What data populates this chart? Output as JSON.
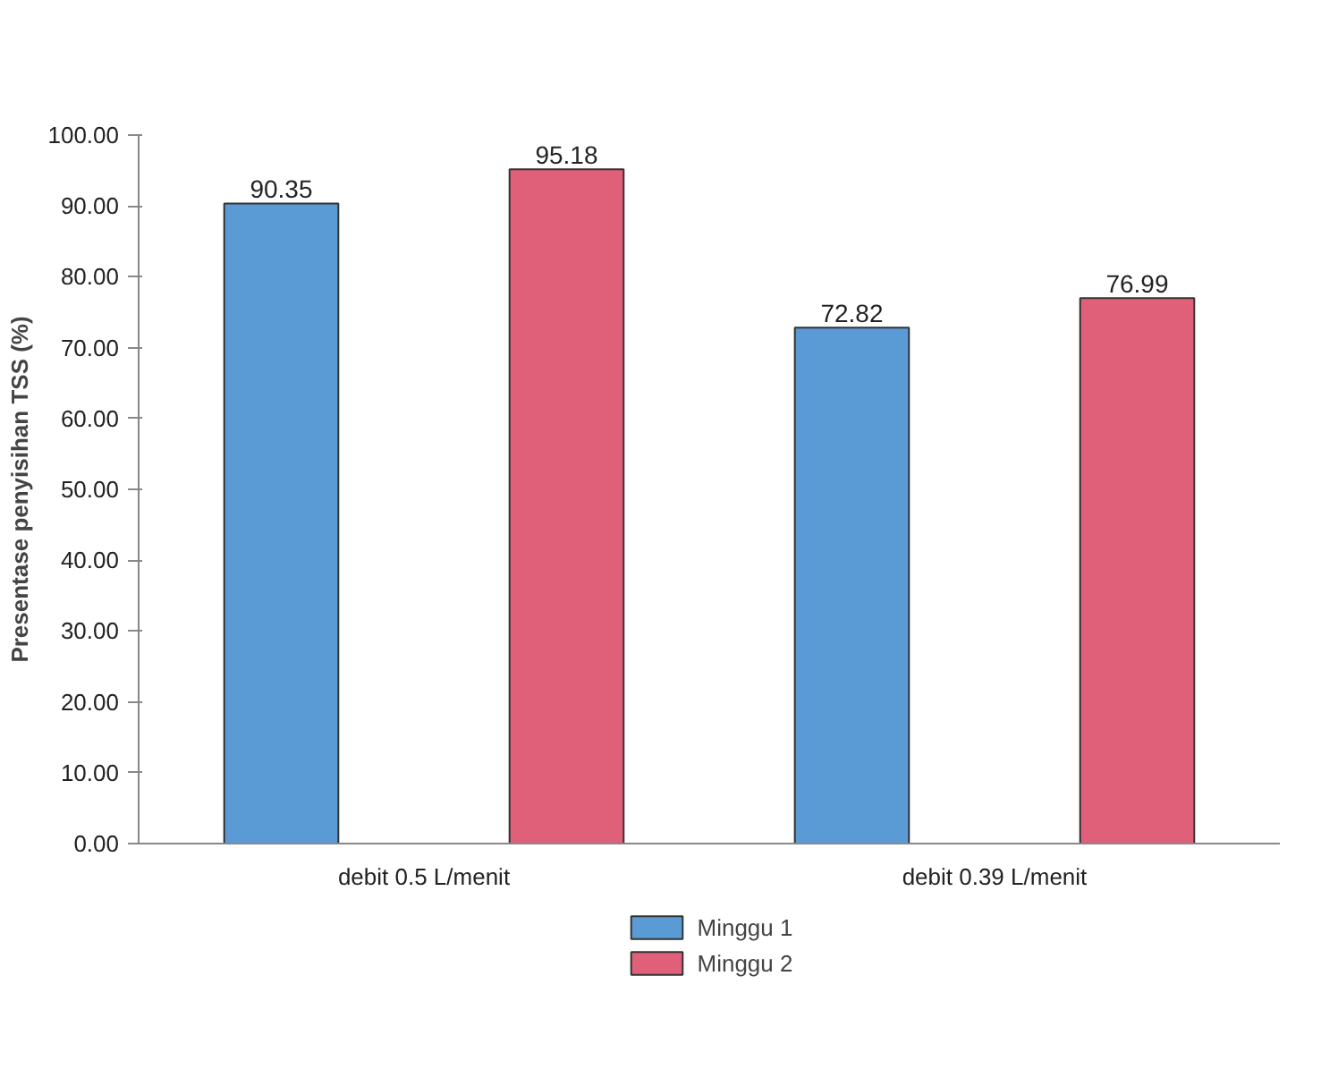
{
  "chart_data": {
    "type": "bar",
    "ylabel": "Presentase penyisihan TSS (%)",
    "categories": [
      "debit 0.5 L/menit",
      "debit 0.39 L/menit"
    ],
    "series": [
      {
        "name": "Minggu 1",
        "color": "#5b9bd5",
        "values": [
          90.35,
          72.82
        ]
      },
      {
        "name": "Minggu 2",
        "color": "#e0607a",
        "values": [
          95.18,
          76.99
        ]
      }
    ],
    "ylim": [
      0,
      100
    ],
    "yticks": [
      {
        "value": 0,
        "label": "0.00"
      },
      {
        "value": 10,
        "label": "10.00"
      },
      {
        "value": 20,
        "label": "20.00"
      },
      {
        "value": 30,
        "label": "30.00"
      },
      {
        "value": 40,
        "label": "40.00"
      },
      {
        "value": 50,
        "label": "50.00"
      },
      {
        "value": 60,
        "label": "60.00"
      },
      {
        "value": 70,
        "label": "70.00"
      },
      {
        "value": 80,
        "label": "80.00"
      },
      {
        "value": 90,
        "label": "90.00"
      },
      {
        "value": 100,
        "label": "100.00"
      }
    ],
    "data_labels": true,
    "legend": "bottom"
  }
}
